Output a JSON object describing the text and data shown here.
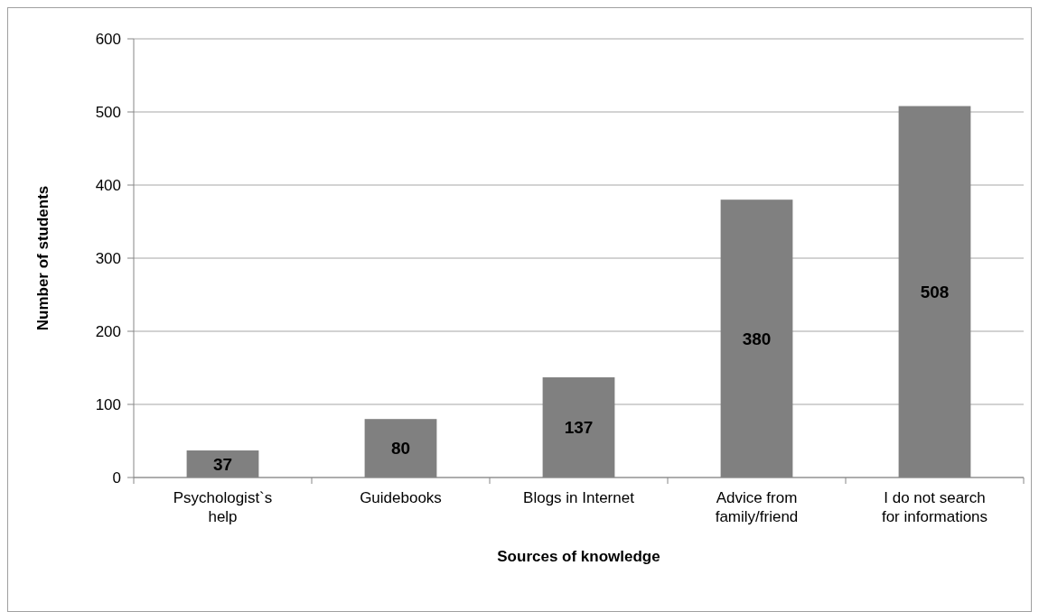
{
  "chart_data": {
    "type": "bar",
    "xlabel": "Sources of knowledge",
    "ylabel": "Number of students",
    "categories": [
      "Psychologist`s help",
      "Guidebooks",
      "Blogs in Internet",
      "Advice from family/friend",
      "I do not search for informations"
    ],
    "values": [
      37,
      80,
      137,
      380,
      508
    ],
    "color": "#808080",
    "ylim": [
      0,
      600
    ],
    "yticks": [
      0,
      100,
      200,
      300,
      400,
      500,
      600
    ],
    "grid": "y",
    "data_labels": true
  }
}
